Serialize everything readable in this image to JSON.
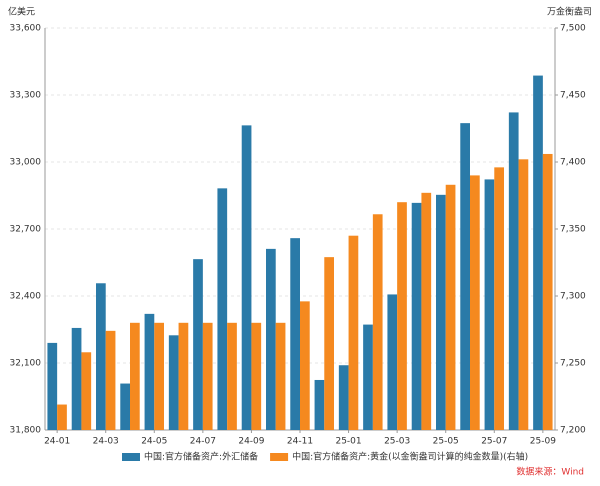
{
  "chart_data": {
    "type": "bar",
    "y_unit": "亿美元",
    "y2_unit": "万金衡盎司",
    "source": "数据来源：Wind",
    "categories": [
      "24-01",
      null,
      "24-03",
      null,
      "24-05",
      null,
      "24-07",
      null,
      "24-09",
      null,
      "24-11",
      null,
      "25-01",
      null,
      "25-03",
      null,
      "25-05",
      null,
      "25-07",
      null,
      "25-09"
    ],
    "series": [
      {
        "name": "中国:官方储备资产:外汇储备",
        "color": "#2a7aa8",
        "values": [
          32190,
          32257,
          32457,
          32008,
          32320,
          32224,
          32565,
          32882,
          33164,
          32611,
          32659,
          32024,
          32090,
          32272,
          32407,
          32817,
          32853,
          33174,
          32922,
          33222,
          33387
        ]
      },
      {
        "name": "中国:官方储备资产:黄金(以金衡盎司计算的纯金数量)(右轴)",
        "color": "#f5891f",
        "axis": "y2",
        "values": [
          7219,
          7258,
          7274,
          7280,
          7280,
          7280,
          7280,
          7280,
          7280,
          7280,
          7296,
          7329,
          7345,
          7361,
          7370,
          7377,
          7383,
          7390,
          7396,
          7402,
          7406
        ]
      }
    ],
    "ylim": [
      31800,
      33600
    ],
    "yticks": [
      {
        "value": 31800,
        "label": "31,800"
      },
      {
        "value": 32100,
        "label": "32,100"
      },
      {
        "value": 32400,
        "label": "32,400"
      },
      {
        "value": 32700,
        "label": "32,700"
      },
      {
        "value": 33000,
        "label": "33,000"
      },
      {
        "value": 33300,
        "label": "33,300"
      },
      {
        "value": 33600,
        "label": "33,600"
      }
    ],
    "y2lim": [
      7200,
      7500
    ],
    "y2ticks": [
      {
        "value": 7200,
        "label": "7,200"
      },
      {
        "value": 7250,
        "label": "7,250"
      },
      {
        "value": 7300,
        "label": "7,300"
      },
      {
        "value": 7350,
        "label": "7,350"
      },
      {
        "value": 7400,
        "label": "7,400"
      },
      {
        "value": 7450,
        "label": "7,450"
      },
      {
        "value": 7500,
        "label": "7,500"
      }
    ],
    "grid": true
  }
}
